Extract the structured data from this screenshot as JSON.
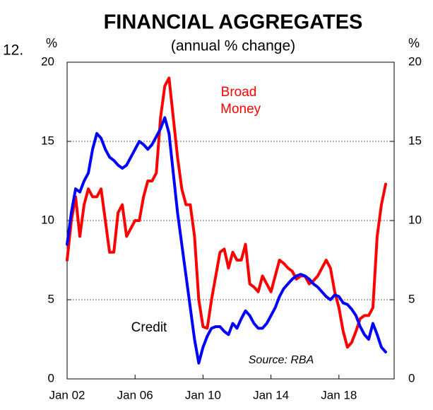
{
  "chart_data": {
    "type": "line",
    "chart_number": "12.",
    "title": "FINANCIAL AGGREGATES",
    "subtitle": "(annual % change)",
    "y_unit": "%",
    "y2_unit": "%",
    "source": "Source: RBA",
    "x": [
      "2002-01",
      "2002-04",
      "2002-07",
      "2002-10",
      "2003-01",
      "2003-04",
      "2003-07",
      "2003-10",
      "2004-01",
      "2004-04",
      "2004-07",
      "2004-10",
      "2005-01",
      "2005-04",
      "2005-07",
      "2005-10",
      "2006-01",
      "2006-04",
      "2006-07",
      "2006-10",
      "2007-01",
      "2007-04",
      "2007-07",
      "2007-10",
      "2008-01",
      "2008-04",
      "2008-07",
      "2008-10",
      "2009-01",
      "2009-04",
      "2009-07",
      "2009-10",
      "2010-01",
      "2010-04",
      "2010-07",
      "2010-10",
      "2011-01",
      "2011-04",
      "2011-07",
      "2011-10",
      "2012-01",
      "2012-04",
      "2012-07",
      "2012-10",
      "2013-01",
      "2013-04",
      "2013-07",
      "2013-10",
      "2014-01",
      "2014-04",
      "2014-07",
      "2014-10",
      "2015-01",
      "2015-04",
      "2015-07",
      "2015-10",
      "2016-01",
      "2016-04",
      "2016-07",
      "2016-10",
      "2017-01",
      "2017-04",
      "2017-07",
      "2017-10",
      "2018-01",
      "2018-04",
      "2018-07",
      "2018-10",
      "2019-01",
      "2019-04",
      "2019-07",
      "2019-10",
      "2020-01",
      "2020-04",
      "2020-07",
      "2020-10"
    ],
    "series": [
      {
        "name": "Broad Money",
        "color": "#ff0000",
        "values": [
          7.5,
          10,
          11.5,
          9,
          11,
          12,
          11.5,
          11.5,
          12,
          10,
          8,
          8,
          10.5,
          11,
          9,
          9.5,
          10,
          10,
          11.5,
          12.5,
          12.5,
          13,
          16.5,
          18.5,
          19,
          16.5,
          14,
          12,
          11,
          11,
          9,
          5,
          3.3,
          3.2,
          5,
          6.5,
          8,
          8.2,
          7,
          8,
          7.5,
          7.5,
          8.5,
          6,
          5.8,
          5.5,
          6.5,
          6,
          5.5,
          6.5,
          7.5,
          7.3,
          7,
          6.8,
          6.3,
          6.5,
          6.5,
          6,
          6.2,
          6.5,
          7,
          7.5,
          7,
          5.5,
          4.5,
          3,
          2,
          2.3,
          3,
          3.8,
          4,
          4,
          4.5,
          9,
          11,
          12.3
        ]
      },
      {
        "name": "Credit",
        "color": "#0000ff",
        "values": [
          8.5,
          10.5,
          12,
          11.8,
          12.5,
          13,
          14.5,
          15.5,
          15.2,
          14.5,
          14,
          13.8,
          13.5,
          13.3,
          13.5,
          14,
          14.5,
          15,
          14.8,
          14.5,
          14.8,
          15.3,
          15.8,
          16.5,
          15.5,
          13,
          10.5,
          8.5,
          6.5,
          4.5,
          2.5,
          1,
          2,
          2.7,
          3.2,
          3.3,
          3.3,
          3,
          2.8,
          3.5,
          3.2,
          3.8,
          4.3,
          4,
          3.5,
          3.2,
          3.2,
          3.5,
          4,
          4.5,
          5.2,
          5.7,
          6,
          6.3,
          6.5,
          6.6,
          6.5,
          6.3,
          6,
          5.8,
          5.5,
          5.2,
          5,
          5.3,
          5.2,
          4.8,
          4.7,
          4.4,
          4,
          3.3,
          2.8,
          2.5,
          3.5,
          2.8,
          2,
          1.7
        ]
      }
    ],
    "xlim": [
      "2002-01",
      "2021-04"
    ],
    "xticks": [
      {
        "value": "2002-01",
        "label": "Jan 02"
      },
      {
        "value": "2006-01",
        "label": "Jan 06"
      },
      {
        "value": "2010-01",
        "label": "Jan 10"
      },
      {
        "value": "2014-01",
        "label": "Jan 14"
      },
      {
        "value": "2018-01",
        "label": "Jan 18"
      }
    ],
    "ylim": [
      0,
      20
    ],
    "yticks": [
      0,
      5,
      10,
      15,
      20
    ],
    "y2lim": [
      0,
      20
    ],
    "y2ticks": [
      0,
      5,
      10,
      15,
      20
    ],
    "grid": true
  }
}
